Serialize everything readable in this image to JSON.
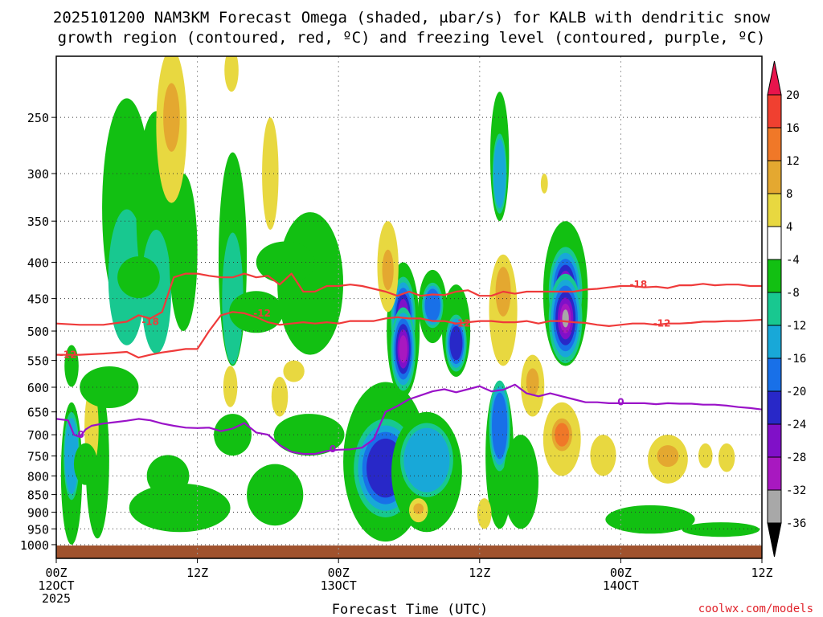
{
  "chart_data": {
    "type": "heatmap",
    "title_line1": "2025101200 NAM3KM Forecast Omega (shaded, μbar/s) for KALB with dendritic snow",
    "title_line2": "growth region (contoured, red, ºC) and freezing level (contoured, purple, ºC)",
    "xlabel": "Forecast Time (UTC)",
    "ylabel": "",
    "x_unit": "hours since 2025-10-12 00Z",
    "xlim": [
      0,
      60
    ],
    "ylim": [
      1000,
      200
    ],
    "y_scale": "log-pressure",
    "y_ticks": [
      250,
      300,
      350,
      400,
      450,
      500,
      550,
      600,
      650,
      700,
      750,
      800,
      850,
      900,
      950,
      1000
    ],
    "x_ticks": [
      {
        "h": 0,
        "l1": "00Z",
        "l2": "12OCT",
        "l3": "2025"
      },
      {
        "h": 12,
        "l1": "12Z",
        "l2": "",
        "l3": ""
      },
      {
        "h": 24,
        "l1": "00Z",
        "l2": "13OCT",
        "l3": ""
      },
      {
        "h": 36,
        "l1": "12Z",
        "l2": "",
        "l3": ""
      },
      {
        "h": 48,
        "l1": "00Z",
        "l2": "14OCT",
        "l3": ""
      },
      {
        "h": 60,
        "l1": "12Z",
        "l2": "",
        "l3": ""
      }
    ],
    "colorbar": {
      "levels": [
        20,
        16,
        12,
        8,
        4,
        -4,
        -8,
        -12,
        -16,
        -20,
        -24,
        -28,
        -32,
        -36
      ],
      "colors": [
        "#e8144c",
        "#f04030",
        "#f07828",
        "#e4a830",
        "#e8d840",
        "#ffffff",
        "#12c012",
        "#18c890",
        "#18a8d8",
        "#1870e8",
        "#2828c8",
        "#8010c8",
        "#a818c0",
        "#a8a8a8",
        "#000000"
      ]
    },
    "ground_color": "#a0522d",
    "credit": "coolwx.com/models",
    "contours": [
      {
        "name": "freezing-level",
        "label": "0",
        "color": "#9a12c8",
        "x": [
          0,
          1,
          1.5,
          2,
          2.5,
          3,
          4,
          5,
          6,
          7,
          8,
          9,
          10,
          11,
          12,
          13,
          14,
          15,
          16,
          17,
          18,
          19,
          20,
          21,
          22,
          23,
          24,
          25,
          26,
          27,
          28,
          29,
          30,
          31,
          32,
          33,
          34,
          35,
          36,
          37,
          38,
          39,
          40,
          41,
          42,
          43,
          44,
          45,
          46,
          47,
          48,
          49,
          50,
          51,
          52,
          53,
          54,
          55,
          56,
          57,
          58,
          59,
          60
        ],
        "p": [
          665,
          668,
          700,
          705,
          688,
          680,
          675,
          672,
          669,
          665,
          668,
          675,
          680,
          684,
          685,
          684,
          692,
          686,
          674,
          695,
          700,
          724,
          740,
          745,
          745,
          738,
          735,
          734,
          730,
          710,
          650,
          638,
          624,
          616,
          608,
          604,
          610,
          604,
          598,
          608,
          605,
          595,
          612,
          618,
          612,
          618,
          624,
          630,
          630,
          632,
          632,
          632,
          632,
          634,
          632,
          633,
          633,
          635,
          635,
          637,
          640,
          642,
          645
        ],
        "labels": [
          {
            "h": 2.1,
            "p": 700
          },
          {
            "h": 23.5,
            "p": 733
          },
          {
            "h": 48,
            "p": 630
          }
        ]
      },
      {
        "name": "dgz-top-18C",
        "label": "-18",
        "color": "#ef3a3a",
        "x": [
          0,
          2,
          4,
          6,
          7,
          8,
          9,
          10,
          11,
          12,
          13,
          14,
          15,
          16,
          17,
          18,
          19,
          20,
          21,
          22,
          23,
          24,
          25,
          26,
          27,
          28,
          29,
          30,
          31,
          32,
          33,
          34,
          35,
          36,
          37,
          38,
          39,
          40,
          41,
          42,
          43,
          44,
          45,
          46,
          47,
          48,
          49,
          50,
          51,
          52,
          53,
          54,
          55,
          56,
          57,
          58,
          59,
          60
        ],
        "p": [
          488,
          490,
          490,
          485,
          475,
          480,
          470,
          420,
          415,
          415,
          418,
          420,
          420,
          415,
          420,
          418,
          430,
          415,
          440,
          440,
          432,
          432,
          430,
          432,
          436,
          440,
          446,
          440,
          446,
          444,
          445,
          440,
          438,
          446,
          446,
          440,
          443,
          440,
          440,
          440,
          440,
          440,
          437,
          436,
          434,
          432,
          432,
          434,
          433,
          435,
          431,
          431,
          429,
          431,
          430,
          430,
          432,
          432
        ],
        "labels": [
          {
            "h": 8,
            "p": 485
          },
          {
            "h": 49.5,
            "p": 430
          }
        ]
      },
      {
        "name": "dgz-bottom-12C",
        "label": "-12",
        "color": "#ef3a3a",
        "x": [
          0,
          2,
          4,
          6,
          7,
          8,
          9,
          10,
          11,
          12,
          13,
          14,
          15,
          16,
          17,
          18,
          19,
          20,
          21,
          22,
          23,
          24,
          25,
          26,
          27,
          28,
          29,
          30,
          31,
          32,
          33,
          34,
          35,
          36,
          37,
          38,
          39,
          40,
          41,
          42,
          43,
          44,
          45,
          46,
          47,
          48,
          49,
          50,
          51,
          52,
          53,
          54,
          55,
          56,
          57,
          58,
          59,
          60
        ],
        "p": [
          540,
          540,
          538,
          535,
          545,
          540,
          536,
          533,
          530,
          530,
          500,
          475,
          470,
          472,
          478,
          486,
          490,
          488,
          486,
          488,
          486,
          488,
          484,
          484,
          484,
          480,
          478,
          480,
          480,
          484,
          484,
          488,
          486,
          484,
          484,
          486,
          486,
          484,
          488,
          484,
          484,
          486,
          487,
          490,
          492,
          490,
          488,
          488,
          490,
          488,
          488,
          487,
          485,
          485,
          484,
          484,
          483,
          482
        ],
        "labels": [
          {
            "h": 1,
            "p": 540
          },
          {
            "h": 17.5,
            "p": 472
          },
          {
            "h": 34.5,
            "p": 488
          },
          {
            "h": 51.5,
            "p": 488
          }
        ]
      }
    ],
    "omega_blobs": [
      {
        "h": 2.5,
        "p": 770,
        "dh": 1.0,
        "r": [
          1,
          1
        ]
      },
      {
        "h": 1.3,
        "p": 560,
        "dh": 0.6,
        "r": [
          1,
          1
        ]
      },
      {
        "h": 9.5,
        "p": 800,
        "dh": 1.8,
        "r": [
          1,
          1
        ]
      },
      {
        "h": 4.5,
        "p": 600,
        "dh": 2.5,
        "r": [
          1,
          1
        ]
      },
      {
        "h": 7.0,
        "p": 420,
        "dh": 1.8,
        "r": [
          1,
          1
        ]
      },
      {
        "h": 15.0,
        "p": 700,
        "dh": 1.6,
        "r": [
          1,
          1
        ]
      },
      {
        "h": 17.0,
        "p": 470,
        "dh": 2.3,
        "r": [
          1,
          1
        ]
      },
      {
        "h": 19.5,
        "p": 400,
        "dh": 2.5,
        "r": [
          1,
          1
        ]
      },
      {
        "h": 21.5,
        "p": 700,
        "dh": 3.0,
        "r": [
          1,
          1
        ]
      }
    ],
    "omega_negative": [
      {
        "name": "w1",
        "h": 1.3,
        "p0": 630,
        "p1": 1000,
        "dh": 0.9,
        "cores": [
          {
            "p": 750,
            "v": -14
          }
        ]
      },
      {
        "name": "w2",
        "h": 3.5,
        "p0": 590,
        "p1": 980,
        "dh": 1.0,
        "cores": []
      },
      {
        "name": "w3",
        "h": 6.0,
        "p0": 235,
        "p1": 480,
        "dh": 2.1,
        "cores": [
          {
            "p": 420,
            "v": -12
          }
        ]
      },
      {
        "name": "w4",
        "h": 8.5,
        "p0": 245,
        "p1": 470,
        "dh": 1.7,
        "cores": [
          {
            "p": 440,
            "v": -11
          }
        ]
      },
      {
        "name": "w5",
        "h": 10.8,
        "p0": 300,
        "p1": 500,
        "dh": 1.2,
        "cores": []
      },
      {
        "name": "w6",
        "h": 15.0,
        "p0": 280,
        "p1": 560,
        "dh": 1.2,
        "cores": [
          {
            "p": 450,
            "v": -12
          }
        ]
      },
      {
        "name": "w7",
        "h": 21.6,
        "p0": 340,
        "p1": 540,
        "dh": 2.8,
        "cores": []
      },
      {
        "name": "w8",
        "h": 10.5,
        "p0": 820,
        "p1": 960,
        "dh": 4.3,
        "cores": []
      },
      {
        "name": "w9",
        "h": 18.6,
        "p0": 770,
        "p1": 940,
        "dh": 2.4,
        "cores": []
      },
      {
        "name": "w10",
        "h": 28.0,
        "p0": 590,
        "p1": 990,
        "dh": 3.6,
        "cores": [
          {
            "p": 780,
            "v": -24
          }
        ]
      },
      {
        "name": "w11",
        "h": 31.5,
        "p0": 650,
        "p1": 960,
        "dh": 3.0,
        "cores": [
          {
            "p": 760,
            "v": -16
          }
        ]
      },
      {
        "name": "w12",
        "h": 29.5,
        "p0": 400,
        "p1": 620,
        "dh": 1.4,
        "cores": [
          {
            "p": 480,
            "v": -28
          },
          {
            "p": 530,
            "v": -32
          }
        ]
      },
      {
        "name": "w13",
        "h": 32.0,
        "p0": 410,
        "p1": 520,
        "dh": 1.2,
        "cores": [
          {
            "p": 460,
            "v": -20
          }
        ]
      },
      {
        "name": "w14",
        "h": 34.0,
        "p0": 430,
        "p1": 580,
        "dh": 1.2,
        "cores": [
          {
            "p": 520,
            "v": -24
          }
        ]
      },
      {
        "name": "w15",
        "h": 37.7,
        "p0": 230,
        "p1": 350,
        "dh": 0.8,
        "cores": [
          {
            "p": 300,
            "v": -16
          }
        ]
      },
      {
        "name": "w16",
        "h": 37.7,
        "p0": 590,
        "p1": 950,
        "dh": 1.2,
        "cores": [
          {
            "p": 680,
            "v": -20
          }
        ]
      },
      {
        "name": "w17",
        "h": 43.3,
        "p0": 350,
        "p1": 560,
        "dh": 1.9,
        "cores": [
          {
            "p": 440,
            "v": -28
          },
          {
            "p": 480,
            "v": -36
          }
        ]
      },
      {
        "name": "w18",
        "h": 39.5,
        "p0": 700,
        "p1": 950,
        "dh": 1.5,
        "cores": []
      },
      {
        "name": "w19",
        "h": 50.5,
        "p0": 880,
        "p1": 965,
        "dh": 3.8,
        "cores": []
      },
      {
        "name": "w20",
        "h": 56.5,
        "p0": 930,
        "p1": 975,
        "dh": 3.3,
        "cores": []
      }
    ],
    "omega_positive": [
      {
        "name": "u1",
        "h": 9.8,
        "p0": 200,
        "p1": 330,
        "dh": 1.3,
        "cores": [
          {
            "p": 250,
            "v": 10
          }
        ]
      },
      {
        "name": "u2",
        "h": 14.9,
        "p0": 200,
        "p1": 230,
        "dh": 0.6,
        "cores": [
          {
            "p": 210,
            "v": 9
          }
        ]
      },
      {
        "name": "u3",
        "h": 18.2,
        "p0": 250,
        "p1": 360,
        "dh": 0.7,
        "cores": []
      },
      {
        "name": "u4",
        "h": 14.8,
        "p0": 560,
        "p1": 640,
        "dh": 0.6,
        "cores": []
      },
      {
        "name": "u5",
        "h": 3.0,
        "p0": 600,
        "p1": 780,
        "dh": 0.6,
        "cores": [
          {
            "p": 650,
            "v": 8
          }
        ]
      },
      {
        "name": "u6",
        "h": 19.0,
        "p0": 580,
        "p1": 660,
        "dh": 0.7,
        "cores": []
      },
      {
        "name": "u7",
        "h": 20.2,
        "p0": 550,
        "p1": 590,
        "dh": 0.9,
        "cores": []
      },
      {
        "name": "u8",
        "h": 28.2,
        "p0": 350,
        "p1": 470,
        "dh": 0.9,
        "cores": [
          {
            "p": 410,
            "v": 10
          }
        ]
      },
      {
        "name": "u9",
        "h": 30.8,
        "p0": 860,
        "p1": 930,
        "dh": 0.8,
        "cores": [
          {
            "p": 890,
            "v": 12
          }
        ]
      },
      {
        "name": "u10",
        "h": 36.4,
        "p0": 860,
        "p1": 950,
        "dh": 0.6,
        "cores": []
      },
      {
        "name": "u11",
        "h": 38.0,
        "p0": 390,
        "p1": 560,
        "dh": 1.2,
        "cores": [
          {
            "p": 440,
            "v": 12
          }
        ]
      },
      {
        "name": "u12",
        "h": 40.5,
        "p0": 540,
        "p1": 660,
        "dh": 1.0,
        "cores": [
          {
            "p": 590,
            "v": 12
          }
        ]
      },
      {
        "name": "u13",
        "h": 43.0,
        "p0": 630,
        "p1": 800,
        "dh": 1.6,
        "cores": [
          {
            "p": 700,
            "v": 16
          }
        ]
      },
      {
        "name": "u14",
        "h": 46.5,
        "p0": 700,
        "p1": 800,
        "dh": 1.1,
        "cores": [
          {
            "p": 750,
            "v": 8
          }
        ]
      },
      {
        "name": "u15",
        "h": 52.0,
        "p0": 700,
        "p1": 820,
        "dh": 1.7,
        "cores": [
          {
            "p": 750,
            "v": 12
          }
        ]
      },
      {
        "name": "u16",
        "h": 55.2,
        "p0": 720,
        "p1": 780,
        "dh": 0.6,
        "cores": []
      },
      {
        "name": "u17",
        "h": 57.0,
        "p0": 720,
        "p1": 790,
        "dh": 0.7,
        "cores": []
      },
      {
        "name": "u18",
        "h": 41.5,
        "p0": 300,
        "p1": 320,
        "dh": 0.3,
        "cores": []
      }
    ]
  }
}
